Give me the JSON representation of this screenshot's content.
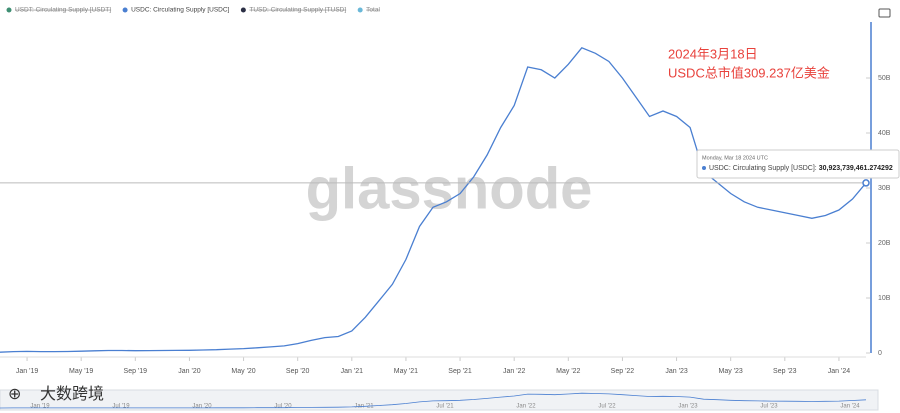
{
  "chart_data": {
    "type": "line",
    "legend": [
      {
        "name": "USDT: Circulating Supply [USDT]",
        "color": "#3f8f73",
        "hidden": true
      },
      {
        "name": "USDC: Circulating Supply [USDC]",
        "color": "#4a7fd1",
        "hidden": false
      },
      {
        "name": "TUSD: Circulating Supply [TUSD]",
        "color": "#2b2f45",
        "hidden": true
      },
      {
        "name": "Total",
        "color": "#6ab8d8",
        "hidden": true
      }
    ],
    "x": [
      "2018-11",
      "2018-12",
      "2019-01",
      "2019-02",
      "2019-03",
      "2019-04",
      "2019-05",
      "2019-06",
      "2019-07",
      "2019-08",
      "2019-09",
      "2019-10",
      "2019-11",
      "2019-12",
      "2020-01",
      "2020-02",
      "2020-03",
      "2020-04",
      "2020-05",
      "2020-06",
      "2020-07",
      "2020-08",
      "2020-09",
      "2020-10",
      "2020-11",
      "2020-12",
      "2021-01",
      "2021-02",
      "2021-03",
      "2021-04",
      "2021-05",
      "2021-06",
      "2021-07",
      "2021-08",
      "2021-09",
      "2021-10",
      "2021-11",
      "2021-12",
      "2022-01",
      "2022-02",
      "2022-03",
      "2022-04",
      "2022-05",
      "2022-06",
      "2022-07",
      "2022-08",
      "2022-09",
      "2022-10",
      "2022-11",
      "2022-12",
      "2023-01",
      "2023-02",
      "2023-03",
      "2023-04",
      "2023-05",
      "2023-06",
      "2023-07",
      "2023-08",
      "2023-09",
      "2023-10",
      "2023-11",
      "2023-12",
      "2024-01",
      "2024-02",
      "2024-03"
    ],
    "series": [
      {
        "name": "USDC: Circulating Supply [USDC]",
        "color": "#4a7fd1",
        "values": [
          150000000.0,
          250000000.0,
          300000000.0,
          250000000.0,
          250000000.0,
          270000000.0,
          330000000.0,
          400000000.0,
          450000000.0,
          450000000.0,
          420000000.0,
          440000000.0,
          450000000.0,
          470000000.0,
          500000000.0,
          550000000.0,
          600000000.0,
          700000000.0,
          800000000.0,
          950000000.0,
          1100000000.0,
          1300000000.0,
          1700000000.0,
          2300000000.0,
          2800000000.0,
          3000000000.0,
          4000000000.0,
          6500000000.0,
          9500000000.0,
          12500000000.0,
          17000000000.0,
          23000000000.0,
          26500000000.0,
          27500000000.0,
          29000000000.0,
          32000000000.0,
          36000000000.0,
          41000000000.0,
          45000000000.0,
          52000000000.0,
          51500000000.0,
          50000000000.0,
          52500000000.0,
          55500000000.0,
          54500000000.0,
          53000000000.0,
          50000000000.0,
          46500000000.0,
          43000000000.0,
          44000000000.0,
          43000000000.0,
          41000000000.0,
          33000000000.0,
          31000000000.0,
          29000000000.0,
          27500000000.0,
          26500000000.0,
          26000000000.0,
          25500000000.0,
          25000000000.0,
          24500000000.0,
          25000000000.0,
          26000000000.0,
          28000000000.0,
          30923739461.274292
        ]
      }
    ],
    "xlim": [
      "2018-11",
      "2024-03"
    ],
    "xticks": [
      {
        "value": "2019-01",
        "label": "Jan '19"
      },
      {
        "value": "2019-05",
        "label": "May '19"
      },
      {
        "value": "2019-09",
        "label": "Sep '19"
      },
      {
        "value": "2020-01",
        "label": "Jan '20"
      },
      {
        "value": "2020-05",
        "label": "May '20"
      },
      {
        "value": "2020-09",
        "label": "Sep '20"
      },
      {
        "value": "2021-01",
        "label": "Jan '21"
      },
      {
        "value": "2021-05",
        "label": "May '21"
      },
      {
        "value": "2021-09",
        "label": "Sep '21"
      },
      {
        "value": "2022-01",
        "label": "Jan '22"
      },
      {
        "value": "2022-05",
        "label": "May '22"
      },
      {
        "value": "2022-09",
        "label": "Sep '22"
      },
      {
        "value": "2023-01",
        "label": "Jan '23"
      },
      {
        "value": "2023-05",
        "label": "May '23"
      },
      {
        "value": "2023-09",
        "label": "Sep '23"
      },
      {
        "value": "2024-01",
        "label": "Jan '24"
      }
    ],
    "ylim": [
      0,
      60000000000.0
    ],
    "yticks": [
      0,
      {
        "value": 10000000000.0,
        "label": "10B"
      },
      {
        "value": 20000000000.0,
        "label": "20B"
      },
      {
        "value": 30000000000.0,
        "label": "30B"
      },
      {
        "value": 40000000000.0,
        "label": "40B"
      },
      {
        "value": 50000000000.0,
        "label": "50B"
      }
    ],
    "tooltip": {
      "date": "Monday, Mar 18 2024 UTC",
      "label": "USDC: Circulating Supply [USDC]:",
      "value": "30,923,739,461.274292"
    },
    "annotations": [
      "2024年3月18日",
      "USDC总市值309.237亿美金"
    ],
    "watermark": "glassnode",
    "navigator_labels": [
      "Jan '19",
      "Jul '19",
      "Jan '20",
      "Jul '20",
      "Jan '21",
      "Jul '21",
      "Jan '22",
      "Jul '22",
      "Jan '23",
      "Jul '23",
      "Jan '24"
    ]
  },
  "brand": "大数跨境"
}
